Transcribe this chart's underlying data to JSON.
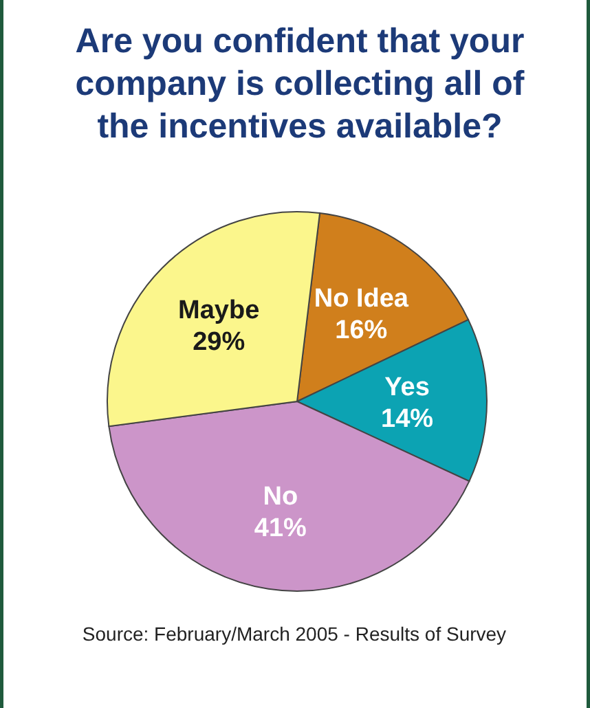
{
  "chart_data": {
    "type": "pie",
    "title": "Are you confident that your company is collecting all of the incentives available?",
    "categories": [
      "No Idea",
      "Yes",
      "No",
      "Maybe"
    ],
    "values": [
      16,
      14,
      41,
      29
    ],
    "colors": [
      "#d07f1c",
      "#0ca3b3",
      "#cc95c9",
      "#fbf68c"
    ],
    "value_labels": [
      "16%",
      "14%",
      "41%",
      "29%"
    ],
    "annotations": [
      "Source: February/March 2005 - Results of Survey"
    ]
  }
}
